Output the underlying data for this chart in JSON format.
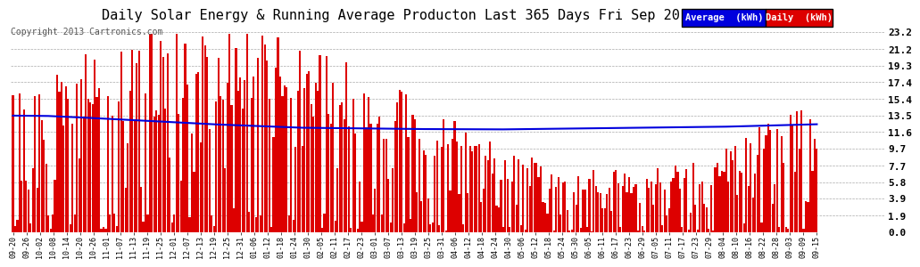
{
  "title": "Daily Solar Energy & Running Average Producton Last 365 Days Fri Sep 20 06:56",
  "copyright": "Copyright 2013 Cartronics.com",
  "legend_labels": [
    "Average  (kWh)",
    "Daily  (kWh)"
  ],
  "legend_colors": [
    "#0000dd",
    "#dd0000"
  ],
  "bar_color": "#dd0000",
  "line_color": "#0000dd",
  "ylim": [
    0.0,
    23.2
  ],
  "yticks": [
    0.0,
    1.9,
    3.9,
    5.8,
    7.7,
    9.7,
    11.6,
    13.5,
    15.4,
    17.4,
    19.3,
    21.2,
    23.2
  ],
  "bg_color": "#ffffff",
  "plot_bg_color": "#ffffff",
  "grid_color": "#aaaaaa",
  "title_fontsize": 11,
  "copyright_fontsize": 7,
  "x_labels": [
    "09-20",
    "09-26",
    "10-02",
    "10-08",
    "10-14",
    "10-20",
    "10-26",
    "11-01",
    "11-07",
    "11-13",
    "11-19",
    "11-25",
    "12-01",
    "12-07",
    "12-13",
    "12-19",
    "12-25",
    "12-31",
    "01-06",
    "01-12",
    "01-18",
    "01-24",
    "01-30",
    "02-05",
    "02-11",
    "02-17",
    "02-23",
    "03-01",
    "03-07",
    "03-13",
    "03-19",
    "03-25",
    "03-31",
    "04-06",
    "04-12",
    "04-18",
    "04-24",
    "04-30",
    "05-06",
    "05-12",
    "05-18",
    "05-24",
    "05-30",
    "06-05",
    "06-11",
    "06-17",
    "06-23",
    "06-29",
    "07-05",
    "07-11",
    "07-17",
    "07-23",
    "07-29",
    "08-04",
    "08-10",
    "08-16",
    "08-22",
    "08-28",
    "09-03",
    "09-09",
    "09-15"
  ],
  "running_avg_points_x": [
    0,
    15,
    30,
    60,
    90,
    130,
    180,
    220,
    270,
    320,
    364
  ],
  "running_avg_points_y": [
    13.5,
    13.47,
    13.3,
    12.9,
    12.5,
    12.1,
    11.95,
    11.9,
    12.05,
    12.2,
    12.5
  ]
}
